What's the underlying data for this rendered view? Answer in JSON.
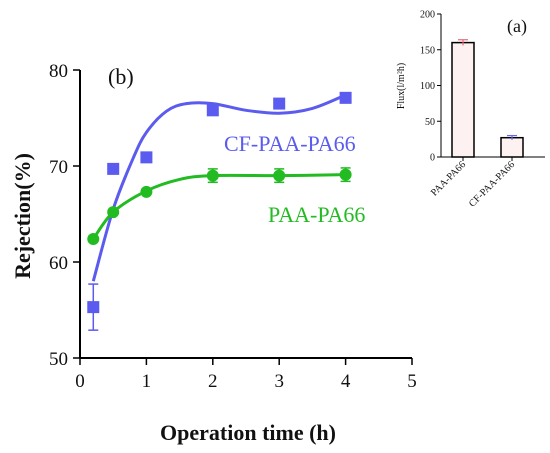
{
  "chart_data": [
    {
      "panel": "(b)",
      "type": "scatter",
      "xlabel": "Operation time (h)",
      "ylabel": "Rejection(%)",
      "xlim": [
        0,
        5
      ],
      "ylim": [
        50,
        80
      ],
      "x_ticks": [
        "0",
        "1",
        "2",
        "3",
        "4",
        "5"
      ],
      "y_ticks": [
        "50",
        "60",
        "70",
        "80"
      ],
      "grid": false,
      "series": [
        {
          "name": "CF-PAA-PA66",
          "color": "#5b5bef",
          "marker": "square",
          "points": [
            {
              "x": 0.2,
              "y": 55.3,
              "err": 2.4
            },
            {
              "x": 0.5,
              "y": 69.7,
              "err": 0
            },
            {
              "x": 1,
              "y": 70.9,
              "err": 0
            },
            {
              "x": 2,
              "y": 75.8,
              "err": 0
            },
            {
              "x": 3,
              "y": 76.5,
              "err": 0
            },
            {
              "x": 4,
              "y": 77.1,
              "err": 0
            }
          ],
          "fit": [
            {
              "x": 0.2,
              "y": 58.0
            },
            {
              "x": 0.5,
              "y": 65.5
            },
            {
              "x": 0.8,
              "y": 70.8
            },
            {
              "x": 1.0,
              "y": 73.5
            },
            {
              "x": 1.3,
              "y": 75.7
            },
            {
              "x": 1.6,
              "y": 76.5
            },
            {
              "x": 2.0,
              "y": 76.5
            },
            {
              "x": 2.5,
              "y": 75.8
            },
            {
              "x": 3.0,
              "y": 75.5
            },
            {
              "x": 3.5,
              "y": 76.0
            },
            {
              "x": 4.0,
              "y": 77.4
            }
          ]
        },
        {
          "name": "PAA-PA66",
          "color": "#22bb22",
          "marker": "circle",
          "points": [
            {
              "x": 0.2,
              "y": 62.4,
              "err": 0
            },
            {
              "x": 0.5,
              "y": 65.2,
              "err": 0
            },
            {
              "x": 1,
              "y": 67.3,
              "err": 0
            },
            {
              "x": 2,
              "y": 69.0,
              "err": 0.7
            },
            {
              "x": 3,
              "y": 69.0,
              "err": 0.7
            },
            {
              "x": 4,
              "y": 69.1,
              "err": 0.7
            }
          ],
          "fit": [
            {
              "x": 0.2,
              "y": 62.4
            },
            {
              "x": 0.5,
              "y": 65.2
            },
            {
              "x": 1.0,
              "y": 67.4
            },
            {
              "x": 1.5,
              "y": 68.6
            },
            {
              "x": 2.0,
              "y": 69.0
            },
            {
              "x": 3.0,
              "y": 69.0
            },
            {
              "x": 4.0,
              "y": 69.1
            }
          ]
        }
      ]
    },
    {
      "panel": "(a)",
      "type": "bar",
      "ylabel": "Flux(l/m²h)",
      "categories": [
        "PAA-PA66",
        "CF-PAA-PA66"
      ],
      "values": [
        160,
        27
      ],
      "errors": [
        4,
        3
      ],
      "error_colors": [
        "#ee6677",
        "#6666ee"
      ],
      "bar_fill": "#fdf1f1",
      "ylim": [
        0,
        200
      ],
      "y_ticks": [
        "0",
        "50",
        "100",
        "150",
        "200"
      ]
    }
  ]
}
